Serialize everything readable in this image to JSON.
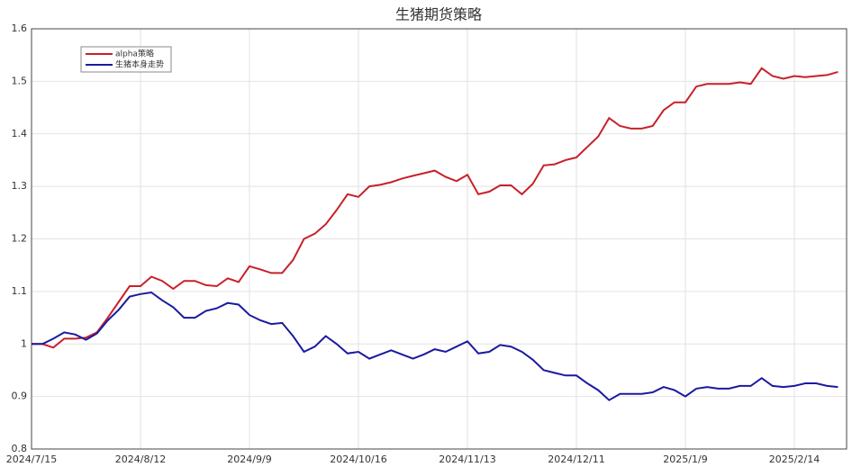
{
  "chart_data": {
    "type": "line",
    "title": "生猪期货策略",
    "categories": [
      "2024/7/15",
      null,
      null,
      null,
      null,
      null,
      null,
      null,
      null,
      null,
      "2024/8/12",
      null,
      null,
      null,
      null,
      null,
      null,
      null,
      null,
      null,
      "2024/9/9",
      null,
      null,
      null,
      null,
      null,
      null,
      null,
      null,
      null,
      "2024/10/16",
      null,
      null,
      null,
      null,
      null,
      null,
      null,
      null,
      null,
      "2024/11/13",
      null,
      null,
      null,
      null,
      null,
      null,
      null,
      null,
      null,
      "2024/12/11",
      null,
      null,
      null,
      null,
      null,
      null,
      null,
      null,
      null,
      "2025/1/9",
      null,
      null,
      null,
      null,
      null,
      null,
      null,
      null,
      null,
      "2025/2/14",
      null,
      null,
      null,
      null
    ],
    "series": [
      {
        "name": "alpha策略",
        "color": "#c8202a",
        "values": [
          1.0,
          1.0,
          0.993,
          1.01,
          1.01,
          1.012,
          1.022,
          1.05,
          1.08,
          1.11,
          1.11,
          1.128,
          1.12,
          1.105,
          1.12,
          1.12,
          1.112,
          1.11,
          1.125,
          1.118,
          1.148,
          1.142,
          1.135,
          1.135,
          1.16,
          1.2,
          1.21,
          1.228,
          1.255,
          1.285,
          1.28,
          1.3,
          1.303,
          1.308,
          1.315,
          1.32,
          1.325,
          1.33,
          1.318,
          1.31,
          1.322,
          1.285,
          1.29,
          1.302,
          1.302,
          1.285,
          1.305,
          1.34,
          1.342,
          1.35,
          1.355,
          1.375,
          1.395,
          1.43,
          1.415,
          1.41,
          1.41,
          1.415,
          1.445,
          1.46,
          1.46,
          1.49,
          1.495,
          1.495,
          1.495,
          1.498,
          1.495,
          1.525,
          1.51,
          1.505,
          1.51,
          1.508,
          1.51,
          1.512,
          1.518
        ]
      },
      {
        "name": "生猪本身走势",
        "color": "#1a1aa0",
        "values": [
          1.0,
          1.0,
          1.01,
          1.022,
          1.018,
          1.008,
          1.02,
          1.045,
          1.065,
          1.09,
          1.095,
          1.098,
          1.083,
          1.07,
          1.05,
          1.05,
          1.063,
          1.068,
          1.078,
          1.075,
          1.055,
          1.045,
          1.038,
          1.04,
          1.015,
          0.985,
          0.995,
          1.015,
          1.0,
          0.982,
          0.985,
          0.972,
          0.98,
          0.988,
          0.98,
          0.972,
          0.98,
          0.99,
          0.985,
          0.995,
          1.005,
          0.982,
          0.985,
          0.998,
          0.995,
          0.985,
          0.97,
          0.95,
          0.945,
          0.94,
          0.94,
          0.925,
          0.912,
          0.893,
          0.905,
          0.905,
          0.905,
          0.908,
          0.918,
          0.912,
          0.9,
          0.915,
          0.918,
          0.915,
          0.915,
          0.92,
          0.92,
          0.935,
          0.92,
          0.918,
          0.92,
          0.925,
          0.925,
          0.92,
          0.918
        ]
      }
    ],
    "ylim": [
      0.8,
      1.6
    ],
    "yticks": [
      0.8,
      0.9,
      1,
      1.1,
      1.2,
      1.3,
      1.4,
      1.5,
      1.6
    ],
    "grid": true,
    "legend": "upper left"
  }
}
